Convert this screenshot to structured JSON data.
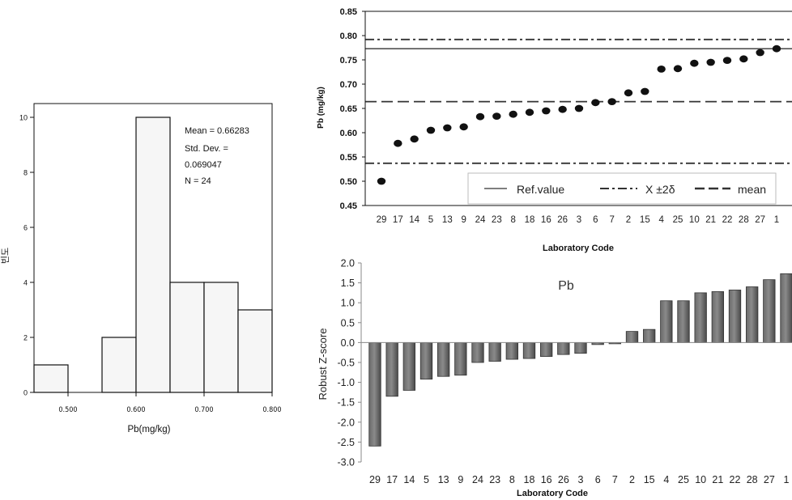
{
  "chart_data": [
    {
      "type": "bar",
      "kind": "histogram",
      "xlabel": "Pb(mg/kg)",
      "ylabel": "빈도",
      "bin_edges": [
        0.45,
        0.5,
        0.55,
        0.6,
        0.65,
        0.7,
        0.75,
        0.8
      ],
      "values": [
        1,
        0,
        2,
        10,
        4,
        4,
        3
      ],
      "xlim": [
        0.45,
        0.8
      ],
      "ylim": [
        0,
        10.5
      ],
      "x_ticks": [
        0.5,
        0.6,
        0.7,
        0.8
      ],
      "x_tick_labels": [
        "0.500",
        "0.600",
        "0.700",
        "0.800"
      ],
      "y_ticks": [
        0,
        2,
        4,
        6,
        8,
        10
      ],
      "stats_text": [
        "Mean = 0.66283",
        "Std. Dev. =",
        "0.069047",
        "N = 24"
      ],
      "grid": false
    },
    {
      "type": "scatter",
      "xlabel": "Laboratory Code",
      "ylabel": "Pb (mg/kg)",
      "categories": [
        "29",
        "17",
        "14",
        "5",
        "13",
        "9",
        "24",
        "23",
        "8",
        "18",
        "16",
        "26",
        "3",
        "6",
        "7",
        "2",
        "15",
        "4",
        "25",
        "10",
        "21",
        "22",
        "28",
        "27",
        "1"
      ],
      "values": [
        0.5,
        0.578,
        0.587,
        0.605,
        0.61,
        0.612,
        0.633,
        0.634,
        0.638,
        0.642,
        0.645,
        0.648,
        0.65,
        0.662,
        0.664,
        0.682,
        0.685,
        0.731,
        0.732,
        0.743,
        0.745,
        0.749,
        0.752,
        0.765,
        0.773
      ],
      "ylim": [
        0.45,
        0.85
      ],
      "y_ticks": [
        0.45,
        0.5,
        0.55,
        0.6,
        0.65,
        0.7,
        0.75,
        0.8,
        0.85
      ],
      "y_tick_labels": [
        "0.45",
        "0.50",
        "0.55",
        "0.60",
        "0.65",
        "0.70",
        "0.75",
        "0.80",
        "0.85"
      ],
      "reference_lines": [
        {
          "name": "Ref.value",
          "y": 0.773,
          "style": "solid"
        },
        {
          "name": "X ±2δ",
          "y": 0.792,
          "style": "dashdot"
        },
        {
          "name": "X ±2δ",
          "y": 0.537,
          "style": "dashdot"
        },
        {
          "name": "mean",
          "y": 0.664,
          "style": "dashed"
        }
      ],
      "legend": [
        "Ref.value",
        "X ±2δ",
        "mean"
      ],
      "legend_position": "bottom-right",
      "grid": false
    },
    {
      "type": "bar",
      "title": "Pb",
      "xlabel": "Laboratory Code",
      "ylabel": "Robust Z-score",
      "categories": [
        "29",
        "17",
        "14",
        "5",
        "13",
        "9",
        "24",
        "23",
        "8",
        "18",
        "16",
        "26",
        "3",
        "6",
        "7",
        "2",
        "15",
        "4",
        "25",
        "10",
        "21",
        "22",
        "28",
        "27",
        "1"
      ],
      "values": [
        -2.6,
        -1.35,
        -1.2,
        -0.92,
        -0.85,
        -0.82,
        -0.5,
        -0.47,
        -0.42,
        -0.4,
        -0.35,
        -0.3,
        -0.27,
        -0.05,
        -0.02,
        0.28,
        0.33,
        1.05,
        1.05,
        1.25,
        1.28,
        1.32,
        1.4,
        1.58,
        1.73
      ],
      "ylim": [
        -3.0,
        2.0
      ],
      "y_ticks": [
        -3,
        -2.5,
        -2,
        -1.5,
        -1,
        -0.5,
        0,
        0.5,
        1,
        1.5,
        2
      ],
      "y_tick_labels": [
        "-3.0",
        "-2.5",
        "-2.0",
        "-1.5",
        "-1.0",
        "-0.5",
        "0.0",
        "0.5",
        "1.0",
        "1.5",
        "2.0"
      ],
      "grid": false
    }
  ]
}
